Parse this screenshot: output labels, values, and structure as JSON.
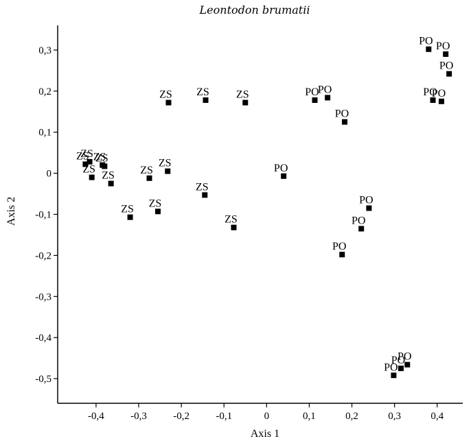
{
  "chart_data": {
    "type": "scatter",
    "title": "Leontodon brumatii",
    "xlabel": "Axis 1",
    "ylabel": "Axis 2",
    "xlim": [
      -0.49,
      0.46
    ],
    "ylim": [
      -0.56,
      0.36
    ],
    "xticks": [
      "-0,4",
      "-0,3",
      "-0,2",
      "-0,1",
      "0",
      "0,1",
      "0,2",
      "0,3",
      "0,4"
    ],
    "xtick_values": [
      -0.4,
      -0.3,
      -0.2,
      -0.1,
      0,
      0.1,
      0.2,
      0.3,
      0.4
    ],
    "yticks": [
      "0,3",
      "0,2",
      "0,1",
      "0",
      "-0,1",
      "-0,2",
      "-0,3",
      "-0,4",
      "-0,5"
    ],
    "ytick_values": [
      0.3,
      0.2,
      0.1,
      0,
      -0.1,
      -0.2,
      -0.3,
      -0.4,
      -0.5
    ],
    "grid": false,
    "point_color": "#000000",
    "points": [
      {
        "label": "ZS",
        "x": -0.425,
        "y": 0.022
      },
      {
        "label": "ZS",
        "x": -0.415,
        "y": 0.028
      },
      {
        "label": "ZS",
        "x": -0.41,
        "y": -0.01
      },
      {
        "label": "ZS",
        "x": -0.385,
        "y": 0.02
      },
      {
        "label": "ZS",
        "x": -0.38,
        "y": 0.017
      },
      {
        "label": "ZS",
        "x": -0.365,
        "y": -0.025
      },
      {
        "label": "ZS",
        "x": -0.32,
        "y": -0.107
      },
      {
        "label": "ZS",
        "x": -0.275,
        "y": -0.012
      },
      {
        "label": "ZS",
        "x": -0.255,
        "y": -0.093
      },
      {
        "label": "ZS",
        "x": -0.232,
        "y": 0.005
      },
      {
        "label": "ZS",
        "x": -0.23,
        "y": 0.172
      },
      {
        "label": "ZS",
        "x": -0.145,
        "y": -0.053
      },
      {
        "label": "ZS",
        "x": -0.143,
        "y": 0.178
      },
      {
        "label": "ZS",
        "x": -0.077,
        "y": -0.132
      },
      {
        "label": "ZS",
        "x": -0.05,
        "y": 0.172
      },
      {
        "label": "PO",
        "x": 0.04,
        "y": -0.007
      },
      {
        "label": "PO",
        "x": 0.113,
        "y": 0.178
      },
      {
        "label": "PO",
        "x": 0.143,
        "y": 0.184
      },
      {
        "label": "PO",
        "x": 0.183,
        "y": 0.125
      },
      {
        "label": "PO",
        "x": 0.177,
        "y": -0.198
      },
      {
        "label": "PO",
        "x": 0.222,
        "y": -0.135
      },
      {
        "label": "PO",
        "x": 0.24,
        "y": -0.085
      },
      {
        "label": "PO",
        "x": 0.298,
        "y": -0.492
      },
      {
        "label": "PO",
        "x": 0.315,
        "y": -0.475
      },
      {
        "label": "PO",
        "x": 0.33,
        "y": -0.466
      },
      {
        "label": "PO",
        "x": 0.38,
        "y": 0.302
      },
      {
        "label": "PO",
        "x": 0.39,
        "y": 0.178
      },
      {
        "label": "PO",
        "x": 0.41,
        "y": 0.175
      },
      {
        "label": "PO",
        "x": 0.42,
        "y": 0.29
      },
      {
        "label": "PO",
        "x": 0.428,
        "y": 0.242
      }
    ]
  }
}
